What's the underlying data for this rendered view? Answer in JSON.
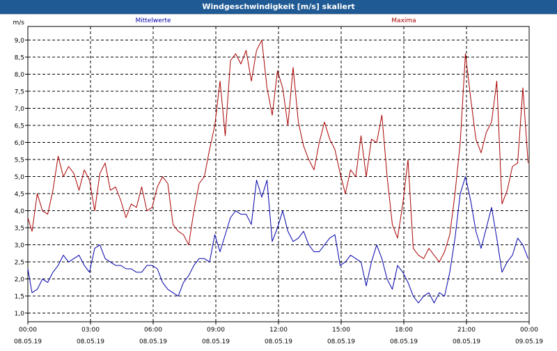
{
  "window": {
    "title": "Windgeschwindigkeit [m/s] skaliert"
  },
  "chart_data": {
    "type": "line",
    "y_unit": "m/s",
    "ylim": [
      0.75,
      9.4
    ],
    "y_ticks": [
      "1,0",
      "1,5",
      "2,0",
      "2,5",
      "3,0",
      "3,5",
      "4,0",
      "4,5",
      "5,0",
      "5,5",
      "6,0",
      "6,5",
      "7,0",
      "7,5",
      "8,0",
      "8,5",
      "9,0"
    ],
    "x_ticks": [
      {
        "time": "00:00",
        "date": "08.05.19"
      },
      {
        "time": "03:00",
        "date": "08.05.19"
      },
      {
        "time": "06:00",
        "date": "08.05.19"
      },
      {
        "time": "09:00",
        "date": "08.05.19"
      },
      {
        "time": "12:00",
        "date": "08.05.19"
      },
      {
        "time": "15:00",
        "date": "08.05.19"
      },
      {
        "time": "18:00",
        "date": "08.05.19"
      },
      {
        "time": "21:00",
        "date": "08.05.19"
      },
      {
        "time": "00:00",
        "date": "09.05.19"
      }
    ],
    "x_range_hours": [
      0,
      24
    ],
    "grid": true,
    "series": [
      {
        "name": "Mittelwerte",
        "color": "#0000aa",
        "x": [
          0,
          0.2,
          0.45,
          0.7,
          0.95,
          1.2,
          1.45,
          1.7,
          1.95,
          2.2,
          2.45,
          2.7,
          2.95,
          3.2,
          3.45,
          3.7,
          3.95,
          4.2,
          4.45,
          4.7,
          4.95,
          5.2,
          5.45,
          5.7,
          5.95,
          6.2,
          6.45,
          6.7,
          6.95,
          7.2,
          7.45,
          7.7,
          7.95,
          8.2,
          8.45,
          8.7,
          8.95,
          9.2,
          9.45,
          9.7,
          9.95,
          10.2,
          10.45,
          10.7,
          10.95,
          11.2,
          11.45,
          11.7,
          11.95,
          12.2,
          12.45,
          12.7,
          12.95,
          13.2,
          13.45,
          13.7,
          13.95,
          14.2,
          14.45,
          14.7,
          14.95,
          15.2,
          15.45,
          15.7,
          15.95,
          16.2,
          16.45,
          16.7,
          16.95,
          17.2,
          17.45,
          17.7,
          17.95,
          18.2,
          18.45,
          18.7,
          18.95,
          19.2,
          19.45,
          19.7,
          19.95,
          20.2,
          20.45,
          20.7,
          20.95,
          21.2,
          21.45,
          21.7,
          21.95,
          22.2,
          22.45,
          22.7,
          22.95,
          23.2,
          23.45,
          23.7,
          23.95
        ],
        "values": [
          2.3,
          1.6,
          1.7,
          2.0,
          1.9,
          2.2,
          2.4,
          2.7,
          2.5,
          2.6,
          2.7,
          2.4,
          2.2,
          2.9,
          3.0,
          2.6,
          2.5,
          2.4,
          2.4,
          2.3,
          2.3,
          2.2,
          2.2,
          2.4,
          2.4,
          2.3,
          1.9,
          1.7,
          1.6,
          1.5,
          1.9,
          2.1,
          2.4,
          2.6,
          2.6,
          2.5,
          3.3,
          2.8,
          3.3,
          3.8,
          4.0,
          3.9,
          3.9,
          3.6,
          4.9,
          4.4,
          4.9,
          3.1,
          3.5,
          4.0,
          3.4,
          3.1,
          3.2,
          3.4,
          3.0,
          2.8,
          2.8,
          3.0,
          3.2,
          3.3,
          2.4,
          2.5,
          2.7,
          2.6,
          2.5,
          1.8,
          2.5,
          3.0,
          2.6,
          2.0,
          1.7,
          2.4,
          2.2,
          1.9,
          1.5,
          1.3,
          1.5,
          1.6,
          1.3,
          1.6,
          1.5,
          2.2,
          3.2,
          4.5,
          5.0,
          4.3,
          3.4,
          2.9,
          3.5,
          4.1,
          3.2,
          2.2,
          2.5,
          2.7,
          3.2,
          3.0,
          2.6
        ]
      },
      {
        "name": "Maxima",
        "color": "#aa0000",
        "x": [
          0,
          0.2,
          0.45,
          0.7,
          0.95,
          1.2,
          1.45,
          1.7,
          1.95,
          2.2,
          2.45,
          2.7,
          2.95,
          3.2,
          3.45,
          3.7,
          3.95,
          4.2,
          4.45,
          4.7,
          4.95,
          5.2,
          5.45,
          5.7,
          5.95,
          6.2,
          6.45,
          6.7,
          6.95,
          7.2,
          7.45,
          7.7,
          7.95,
          8.2,
          8.45,
          8.7,
          8.95,
          9.2,
          9.45,
          9.7,
          9.95,
          10.2,
          10.45,
          10.7,
          10.95,
          11.2,
          11.45,
          11.7,
          11.95,
          12.2,
          12.45,
          12.7,
          12.95,
          13.2,
          13.45,
          13.7,
          13.95,
          14.2,
          14.45,
          14.7,
          14.95,
          15.2,
          15.45,
          15.7,
          15.95,
          16.2,
          16.45,
          16.7,
          16.95,
          17.2,
          17.45,
          17.7,
          17.95,
          18.2,
          18.45,
          18.7,
          18.95,
          19.2,
          19.45,
          19.7,
          19.95,
          20.2,
          20.45,
          20.7,
          20.95,
          21.2,
          21.45,
          21.7,
          21.95,
          22.2,
          22.45,
          22.7,
          22.95,
          23.2,
          23.45,
          23.7,
          23.95
        ],
        "values": [
          3.8,
          3.4,
          4.5,
          4.0,
          3.9,
          4.6,
          5.6,
          5.0,
          5.3,
          5.1,
          4.6,
          5.2,
          4.9,
          4.0,
          5.1,
          5.4,
          4.6,
          4.7,
          4.3,
          3.8,
          4.2,
          4.1,
          4.7,
          4.0,
          4.1,
          4.7,
          5.0,
          4.8,
          3.6,
          3.4,
          3.3,
          3.0,
          4.0,
          4.8,
          5.0,
          5.8,
          6.5,
          7.8,
          6.2,
          8.4,
          8.6,
          8.3,
          8.7,
          7.8,
          8.7,
          9.0,
          7.6,
          6.8,
          8.1,
          7.6,
          6.5,
          8.2,
          6.6,
          5.9,
          5.5,
          5.2,
          6.0,
          6.6,
          6.1,
          5.8,
          5.1,
          4.5,
          5.2,
          5.0,
          6.2,
          5.0,
          6.1,
          6.0,
          6.8,
          5.0,
          3.6,
          3.2,
          4.2,
          5.5,
          2.9,
          2.7,
          2.6,
          2.9,
          2.7,
          2.5,
          2.8,
          3.3,
          4.5,
          6.0,
          8.6,
          7.3,
          6.1,
          5.7,
          6.3,
          6.6,
          7.8,
          4.2,
          4.6,
          5.3,
          5.4,
          7.6,
          5.4
        ]
      }
    ]
  }
}
